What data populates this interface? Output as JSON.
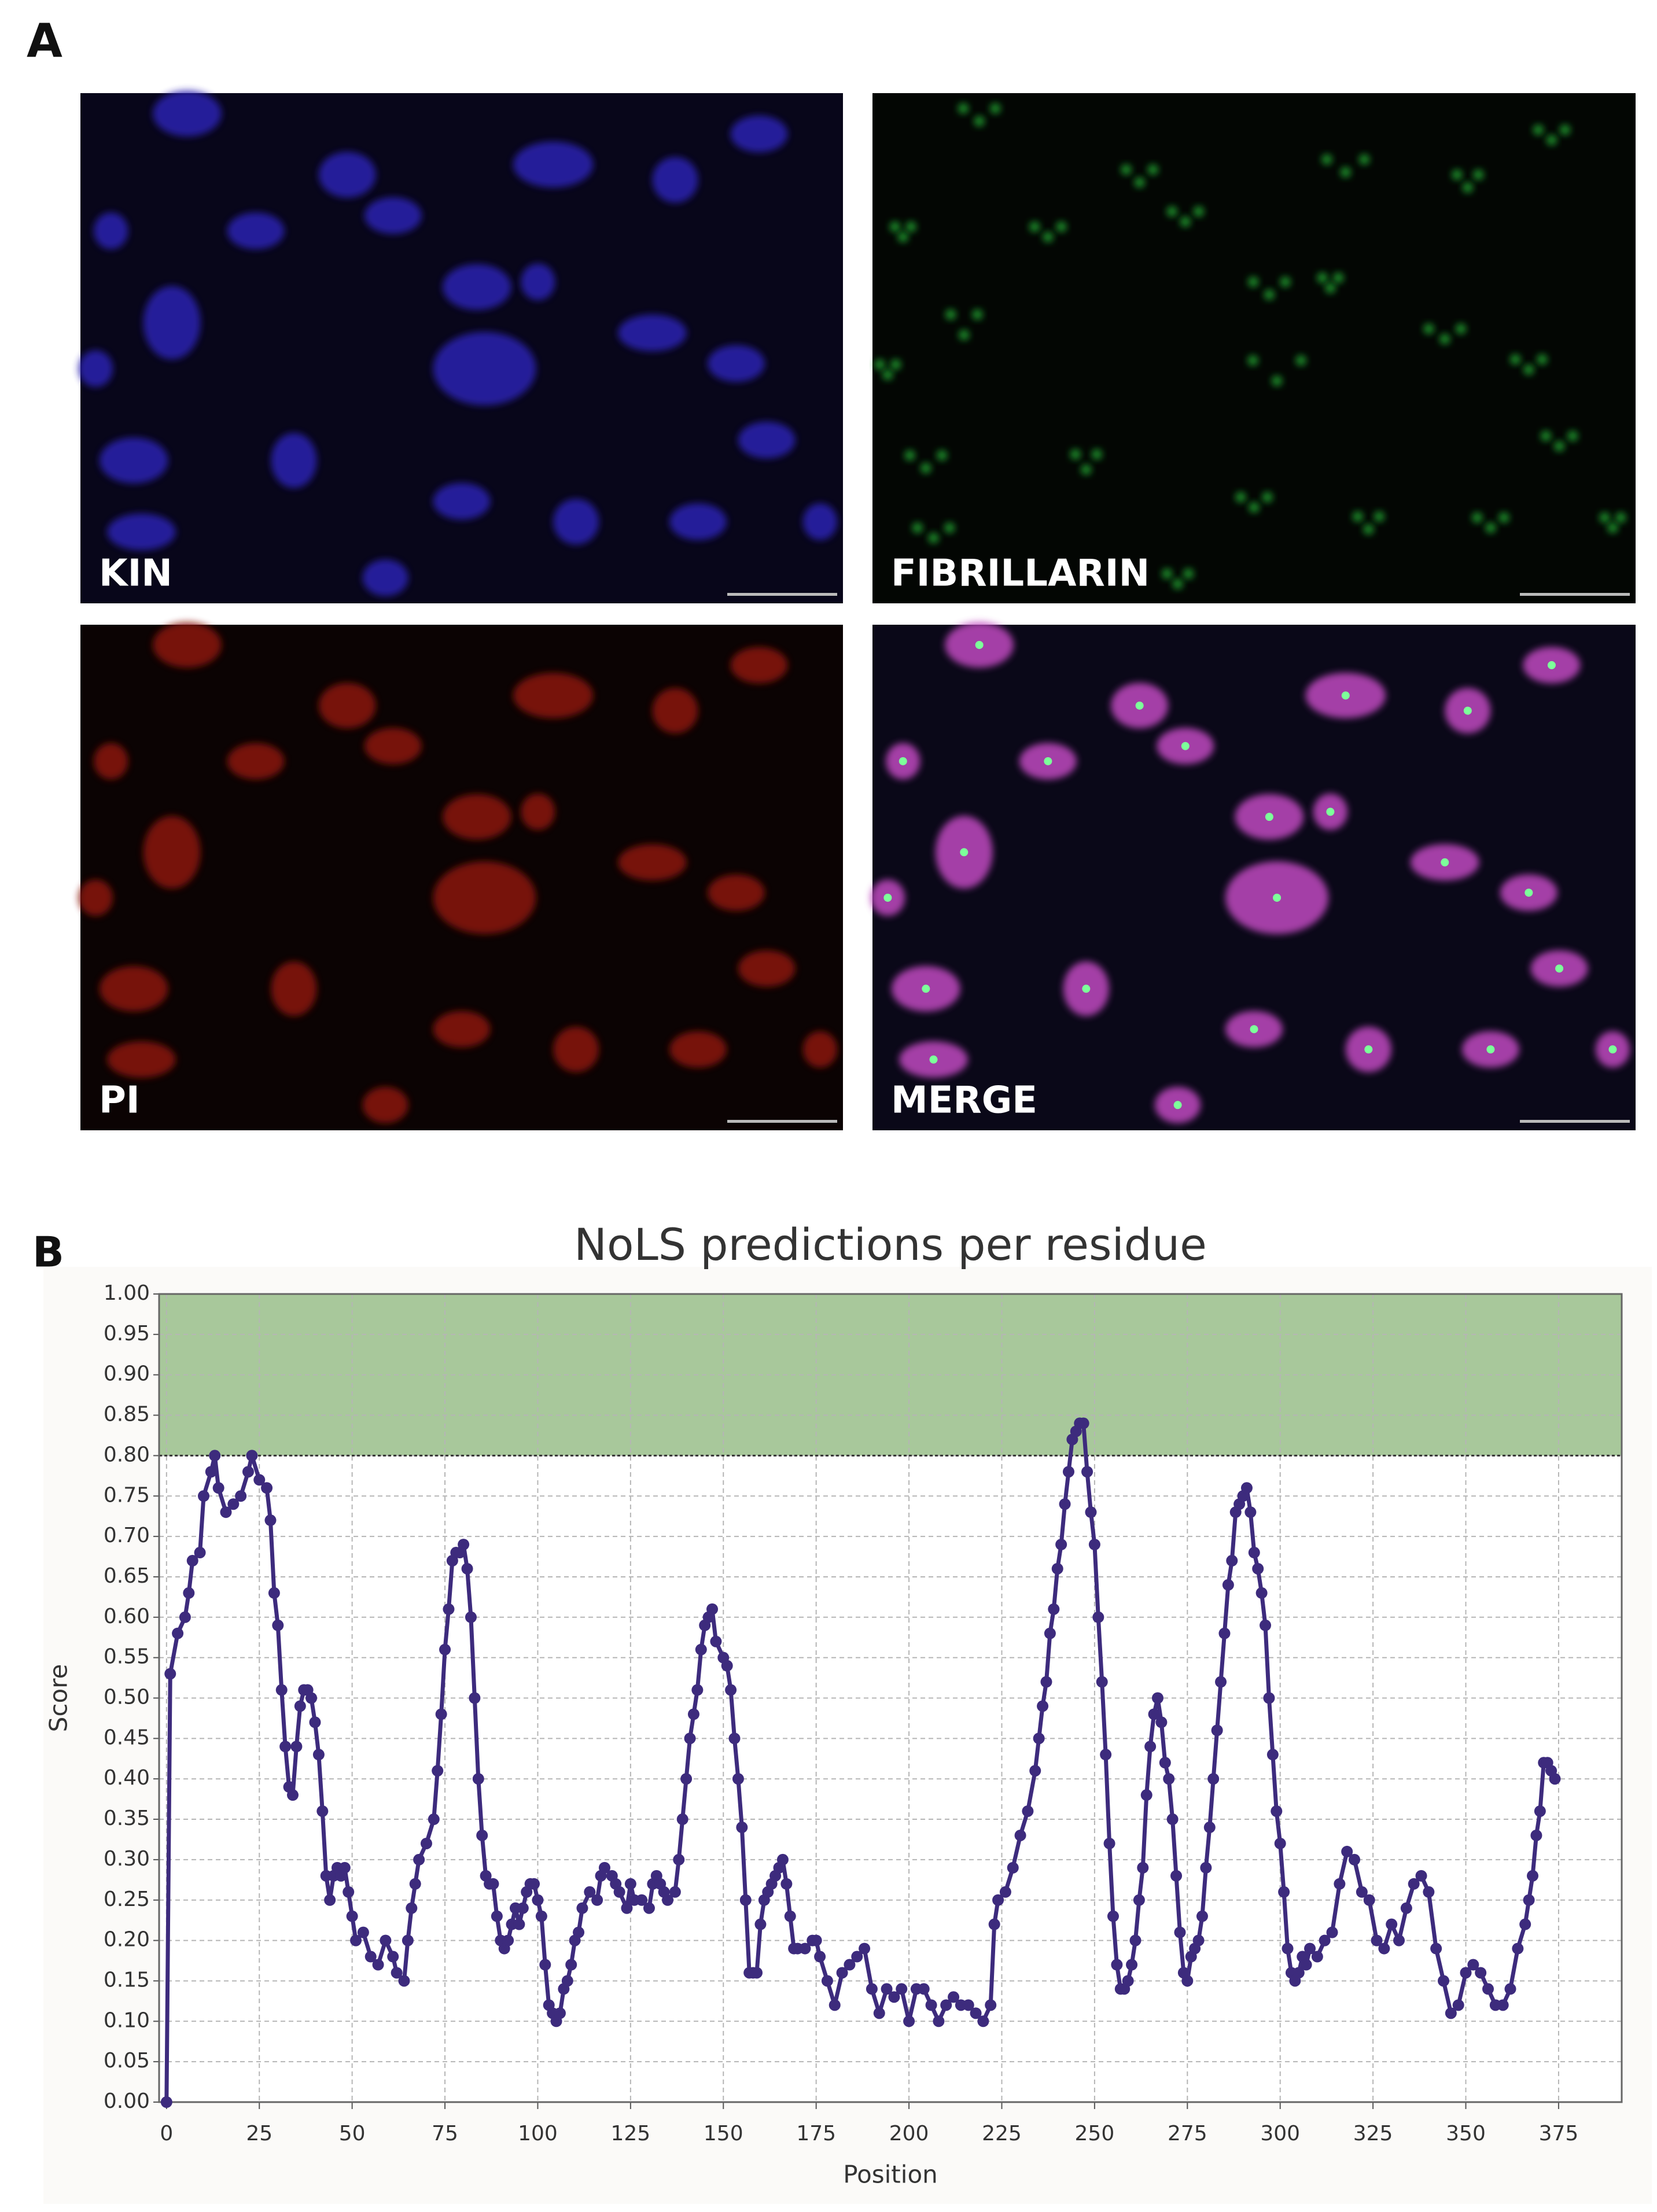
{
  "panel_a": {
    "label": "A",
    "images": [
      {
        "label": "KIN"
      },
      {
        "label": "FIBRILLARIN"
      },
      {
        "label": "PI"
      },
      {
        "label": "MERGE"
      }
    ]
  },
  "panel_b": {
    "label": "B"
  },
  "chart_data": {
    "type": "line",
    "title": "NoLS predictions per residue",
    "x_label": "Position",
    "y_label": "Score",
    "xlim": [
      -2,
      392
    ],
    "ylim": [
      0,
      1
    ],
    "xticks": [
      0,
      25,
      50,
      75,
      100,
      125,
      150,
      175,
      200,
      225,
      250,
      275,
      300,
      325,
      350,
      375
    ],
    "yticks": [
      {
        "value": 0,
        "label": "0.00"
      },
      {
        "value": 0.05,
        "label": "0.05"
      },
      {
        "value": 0.1,
        "label": "0.10"
      },
      {
        "value": 0.15,
        "label": "0.15"
      },
      {
        "value": 0.2,
        "label": "0.20"
      },
      {
        "value": 0.25,
        "label": "0.25"
      },
      {
        "value": 0.3,
        "label": "0.30"
      },
      {
        "value": 0.35,
        "label": "0.35"
      },
      {
        "value": 0.4,
        "label": "0.40"
      },
      {
        "value": 0.45,
        "label": "0.45"
      },
      {
        "value": 0.5,
        "label": "0.50"
      },
      {
        "value": 0.55,
        "label": "0.55"
      },
      {
        "value": 0.6,
        "label": "0.60"
      },
      {
        "value": 0.65,
        "label": "0.65"
      },
      {
        "value": 0.7,
        "label": "0.70"
      },
      {
        "value": 0.75,
        "label": "0.75"
      },
      {
        "value": 0.8,
        "label": "0.80"
      },
      {
        "value": 0.85,
        "label": "0.85"
      },
      {
        "value": 0.9,
        "label": "0.90"
      },
      {
        "value": 0.95,
        "label": "0.95"
      },
      {
        "value": 1,
        "label": "1.00"
      }
    ],
    "grid": true,
    "threshold": 0.8,
    "threshold_color": "#a8c89b",
    "x": [
      0,
      1,
      3,
      5,
      6,
      7,
      9,
      10,
      12,
      13,
      14,
      16,
      18,
      20,
      22,
      23,
      25,
      27,
      28,
      29,
      30,
      31,
      32,
      33,
      34,
      35,
      36,
      37,
      38,
      39,
      40,
      41,
      42,
      43,
      44,
      45,
      46,
      47,
      48,
      49,
      50,
      51,
      53,
      55,
      57,
      59,
      61,
      62,
      64,
      65,
      66,
      67,
      68,
      70,
      72,
      73,
      74,
      75,
      76,
      77,
      78,
      79,
      80,
      81,
      82,
      83,
      84,
      85,
      86,
      87,
      88,
      89,
      90,
      91,
      92,
      93,
      94,
      95,
      96,
      97,
      98,
      99,
      100,
      101,
      102,
      103,
      104,
      105,
      106,
      107,
      108,
      109,
      110,
      111,
      112,
      114,
      116,
      117,
      118,
      120,
      121,
      122,
      124,
      125,
      126,
      128,
      130,
      131,
      132,
      133,
      134,
      135,
      137,
      138,
      139,
      140,
      141,
      142,
      143,
      144,
      145,
      146,
      147,
      148,
      150,
      151,
      152,
      153,
      154,
      155,
      156,
      157,
      158,
      159,
      160,
      161,
      162,
      163,
      164,
      165,
      166,
      167,
      168,
      169,
      170,
      172,
      174,
      175,
      176,
      178,
      180,
      182,
      184,
      186,
      188,
      190,
      192,
      194,
      196,
      198,
      200,
      202,
      204,
      206,
      208,
      210,
      212,
      214,
      216,
      218,
      220,
      222,
      223,
      224,
      226,
      228,
      230,
      232,
      234,
      235,
      236,
      237,
      238,
      239,
      240,
      241,
      242,
      243,
      244,
      245,
      246,
      247,
      248,
      249,
      250,
      251,
      252,
      253,
      254,
      255,
      256,
      257,
      258,
      259,
      260,
      261,
      262,
      263,
      264,
      265,
      266,
      267,
      268,
      269,
      270,
      271,
      272,
      273,
      274,
      275,
      276,
      277,
      278,
      279,
      280,
      281,
      282,
      283,
      284,
      285,
      286,
      287,
      288,
      289,
      290,
      291,
      292,
      293,
      294,
      295,
      296,
      297,
      298,
      299,
      300,
      301,
      302,
      303,
      304,
      305,
      306,
      307,
      308,
      310,
      312,
      314,
      316,
      318,
      320,
      322,
      324,
      326,
      328,
      330,
      332,
      334,
      336,
      338,
      340,
      342,
      344,
      346,
      348,
      350,
      352,
      354,
      356,
      358,
      360,
      362,
      364,
      366,
      367,
      368,
      369,
      370,
      371,
      372,
      373,
      374
    ],
    "series": [
      {
        "color": "#3d2b7d",
        "values": [
          0,
          0.53,
          0.58,
          0.6,
          0.63,
          0.67,
          0.68,
          0.75,
          0.78,
          0.8,
          0.76,
          0.73,
          0.74,
          0.75,
          0.78,
          0.8,
          0.77,
          0.76,
          0.72,
          0.63,
          0.59,
          0.51,
          0.44,
          0.39,
          0.38,
          0.44,
          0.49,
          0.51,
          0.51,
          0.5,
          0.47,
          0.43,
          0.36,
          0.28,
          0.25,
          0.28,
          0.29,
          0.28,
          0.29,
          0.26,
          0.23,
          0.2,
          0.21,
          0.18,
          0.17,
          0.2,
          0.18,
          0.16,
          0.15,
          0.2,
          0.24,
          0.27,
          0.3,
          0.32,
          0.35,
          0.41,
          0.48,
          0.56,
          0.61,
          0.67,
          0.68,
          0.68,
          0.69,
          0.66,
          0.6,
          0.5,
          0.4,
          0.33,
          0.28,
          0.27,
          0.27,
          0.23,
          0.2,
          0.19,
          0.2,
          0.22,
          0.24,
          0.22,
          0.24,
          0.26,
          0.27,
          0.27,
          0.25,
          0.23,
          0.17,
          0.12,
          0.11,
          0.1,
          0.11,
          0.14,
          0.15,
          0.17,
          0.2,
          0.21,
          0.24,
          0.26,
          0.25,
          0.28,
          0.29,
          0.28,
          0.27,
          0.26,
          0.24,
          0.27,
          0.25,
          0.25,
          0.24,
          0.27,
          0.28,
          0.27,
          0.26,
          0.25,
          0.26,
          0.3,
          0.35,
          0.4,
          0.45,
          0.48,
          0.51,
          0.56,
          0.59,
          0.6,
          0.61,
          0.57,
          0.55,
          0.54,
          0.51,
          0.45,
          0.4,
          0.34,
          0.25,
          0.16,
          0.16,
          0.16,
          0.22,
          0.25,
          0.26,
          0.27,
          0.28,
          0.29,
          0.3,
          0.27,
          0.23,
          0.19,
          0.19,
          0.19,
          0.2,
          0.2,
          0.18,
          0.15,
          0.12,
          0.16,
          0.17,
          0.18,
          0.19,
          0.14,
          0.11,
          0.14,
          0.13,
          0.14,
          0.1,
          0.14,
          0.14,
          0.12,
          0.1,
          0.12,
          0.13,
          0.12,
          0.12,
          0.11,
          0.1,
          0.12,
          0.22,
          0.25,
          0.26,
          0.29,
          0.33,
          0.36,
          0.41,
          0.45,
          0.49,
          0.52,
          0.58,
          0.61,
          0.66,
          0.69,
          0.74,
          0.78,
          0.82,
          0.83,
          0.84,
          0.84,
          0.78,
          0.73,
          0.69,
          0.6,
          0.52,
          0.43,
          0.32,
          0.23,
          0.17,
          0.14,
          0.14,
          0.15,
          0.17,
          0.2,
          0.25,
          0.29,
          0.38,
          0.44,
          0.48,
          0.5,
          0.47,
          0.42,
          0.4,
          0.35,
          0.28,
          0.21,
          0.16,
          0.15,
          0.18,
          0.19,
          0.2,
          0.23,
          0.29,
          0.34,
          0.4,
          0.46,
          0.52,
          0.58,
          0.64,
          0.67,
          0.73,
          0.74,
          0.75,
          0.76,
          0.73,
          0.68,
          0.66,
          0.63,
          0.59,
          0.5,
          0.43,
          0.36,
          0.32,
          0.26,
          0.19,
          0.16,
          0.15,
          0.16,
          0.18,
          0.17,
          0.19,
          0.18,
          0.2,
          0.21,
          0.27,
          0.31,
          0.3,
          0.26,
          0.25,
          0.2,
          0.19,
          0.22,
          0.2,
          0.24,
          0.27,
          0.28,
          0.26,
          0.19,
          0.15,
          0.11,
          0.12,
          0.16,
          0.17,
          0.16,
          0.14,
          0.12,
          0.12,
          0.14,
          0.19,
          0.22,
          0.25,
          0.28,
          0.33,
          0.36,
          0.42,
          0.42,
          0.41,
          0.4
        ]
      }
    ]
  }
}
